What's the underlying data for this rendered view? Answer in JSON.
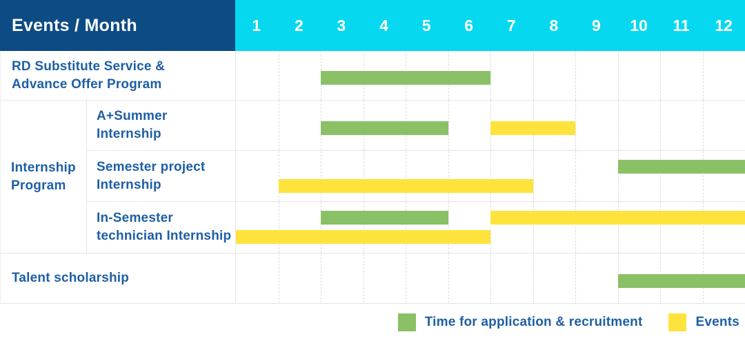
{
  "header": {
    "title": "Events / Month",
    "months": [
      "1",
      "2",
      "3",
      "4",
      "5",
      "6",
      "7",
      "8",
      "9",
      "10",
      "11",
      "12"
    ]
  },
  "colors": {
    "header_bg": "#0d4b84",
    "months_bg": "#06d8f0",
    "label_text": "#1e5fa5",
    "green": "#8ac166",
    "yellow": "#ffe33d",
    "grid_line": "#dcdcdc",
    "row_line": "#e5e5e5",
    "background": "#ffffff"
  },
  "legend": [
    {
      "color_key": "green",
      "label": "Time for application & recruitment"
    },
    {
      "color_key": "yellow",
      "label": "Events"
    }
  ],
  "chart_data": {
    "type": "bar",
    "subtype": "gantt",
    "title": "Events / Month",
    "xlabel": "Month",
    "x_ticks": [
      1,
      2,
      3,
      4,
      5,
      6,
      7,
      8,
      9,
      10,
      11,
      12
    ],
    "x_range": [
      1,
      12
    ],
    "grid": true,
    "legend_position": "bottom-right",
    "series": [
      {
        "name": "Time for application & recruitment",
        "color_key": "green",
        "color": "#8ac166"
      },
      {
        "name": "Events",
        "color_key": "yellow",
        "color": "#ffe33d"
      }
    ],
    "sections": [
      {
        "group_label_lines": null,
        "rows": [
          {
            "label_lines": [
              "RD Substitute Service &",
              "Advance Offer Program"
            ],
            "lines": [
              [
                {
                  "series": "Time for application & recruitment",
                  "color_key": "green",
                  "start_month": 3,
                  "end_month": 6
                }
              ]
            ]
          }
        ]
      },
      {
        "group_label_lines": [
          "Internship",
          "Program"
        ],
        "rows": [
          {
            "label_lines": [
              "A+Summer",
              "Internship"
            ],
            "lines": [
              [
                {
                  "series": "Time for application & recruitment",
                  "color_key": "green",
                  "start_month": 3,
                  "end_month": 5
                },
                {
                  "series": "Events",
                  "color_key": "yellow",
                  "start_month": 7,
                  "end_month": 8
                }
              ]
            ]
          },
          {
            "label_lines": [
              "Semester project",
              "Internship"
            ],
            "lines": [
              [
                {
                  "series": "Time for application & recruitment",
                  "color_key": "green",
                  "start_month": 10,
                  "end_month": 12
                }
              ],
              [
                {
                  "series": "Events",
                  "color_key": "yellow",
                  "start_month": 2,
                  "end_month": 7
                }
              ]
            ]
          },
          {
            "label_lines": [
              "In-Semester",
              "technician Internship"
            ],
            "lines": [
              [
                {
                  "series": "Time for application & recruitment",
                  "color_key": "green",
                  "start_month": 3,
                  "end_month": 5
                },
                {
                  "series": "Events",
                  "color_key": "yellow",
                  "start_month": 7,
                  "end_month": 12
                }
              ],
              [
                {
                  "series": "Events",
                  "color_key": "yellow",
                  "start_month": 1,
                  "end_month": 6
                }
              ]
            ]
          }
        ]
      },
      {
        "group_label_lines": null,
        "rows": [
          {
            "label_lines": [
              "Talent scholarship"
            ],
            "lines": [
              [
                {
                  "series": "Time for application & recruitment",
                  "color_key": "green",
                  "start_month": 10,
                  "end_month": 12
                }
              ]
            ]
          }
        ]
      }
    ]
  }
}
